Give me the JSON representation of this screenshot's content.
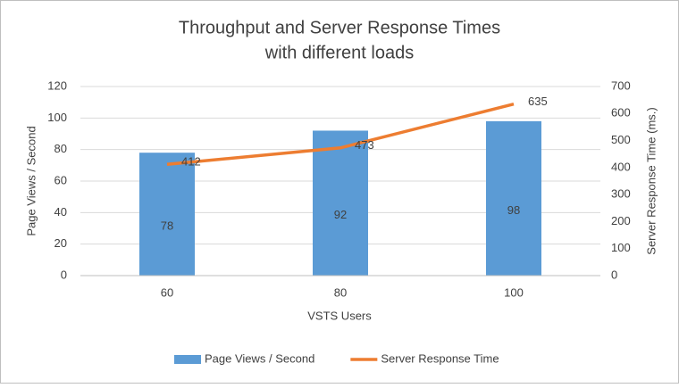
{
  "chart_data": {
    "type": "bar",
    "title": [
      "Throughput and Server Response Times",
      "with different loads"
    ],
    "x_label": "VSTS Users",
    "y_label": "Page Views / Second",
    "y2_label": "Server Response Time (ms.)",
    "categories": [
      "60",
      "80",
      "100"
    ],
    "series": [
      {
        "name": "Page Views / Second",
        "type": "bar",
        "color": "#5b9bd5",
        "values": [
          78,
          92,
          98
        ]
      },
      {
        "name": "Server Response Time",
        "type": "line",
        "axis": "y2",
        "color": "#ed7d31",
        "values": [
          412,
          473,
          635
        ]
      }
    ],
    "ylim": [
      0,
      120
    ],
    "yticks": [
      0,
      20,
      40,
      60,
      80,
      100,
      120
    ],
    "y2lim": [
      0,
      700
    ],
    "y2ticks": [
      0,
      100,
      200,
      300,
      400,
      500,
      600,
      700
    ],
    "grid": true,
    "legend": "bottom"
  }
}
